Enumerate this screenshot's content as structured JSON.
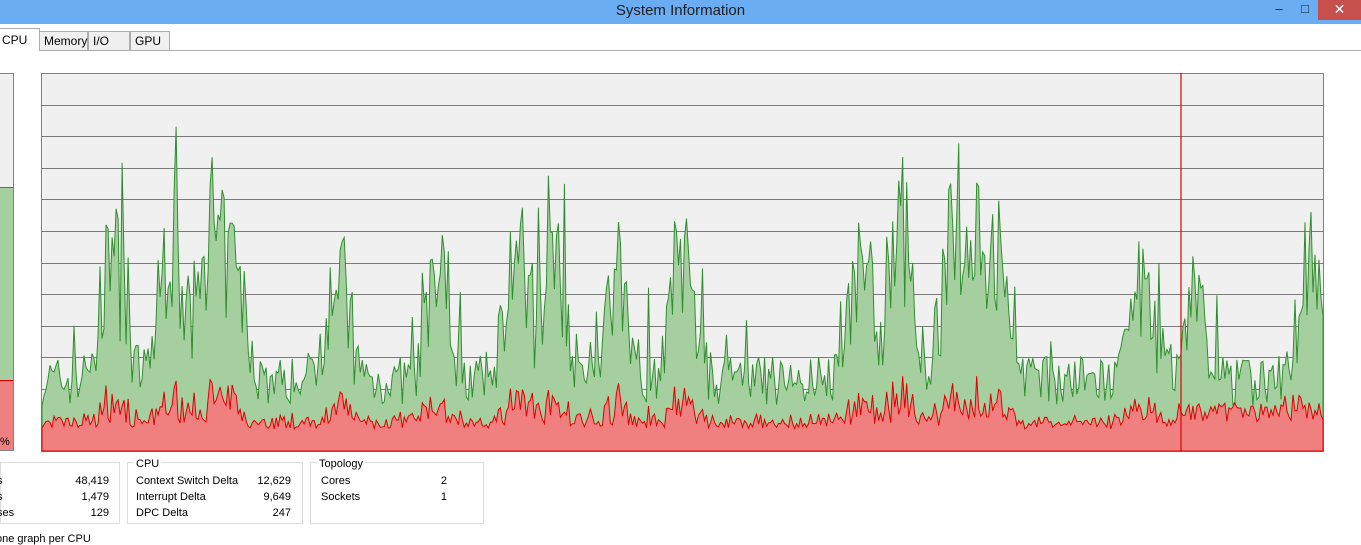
{
  "window": {
    "title": "System Information"
  },
  "tabs": [
    "CPU",
    "Memory",
    "I/O",
    "GPU"
  ],
  "active_tab": "CPU",
  "meter": {
    "label": "%",
    "total_fraction": 0.7,
    "kernel_fraction": 0.19,
    "total_color": "#a6cfa0",
    "kernel_color": "#f08080"
  },
  "graph": {
    "total_color": "#2f8f2f",
    "total_fill": "#a6cfa0",
    "kernel_color": "#e00000",
    "kernel_fill": "#f08080",
    "grid_lines": 12,
    "background": "#f0f0f0"
  },
  "groups": {
    "left": {
      "rows": [
        {
          "label": "s",
          "value": "48,419"
        },
        {
          "label": "s",
          "value": "1,479"
        },
        {
          "label": "ses",
          "value": "129"
        }
      ]
    },
    "cpu": {
      "title": "CPU",
      "rows": [
        {
          "label": "Context Switch Delta",
          "value": "12,629"
        },
        {
          "label": "Interrupt Delta",
          "value": "9,649"
        },
        {
          "label": "DPC Delta",
          "value": "247"
        }
      ]
    },
    "topology": {
      "title": "Topology",
      "rows": [
        {
          "label": "Cores",
          "value": "2"
        },
        {
          "label": "Sockets",
          "value": "1"
        }
      ]
    }
  },
  "footer": {
    "text": "one graph per CPU"
  }
}
